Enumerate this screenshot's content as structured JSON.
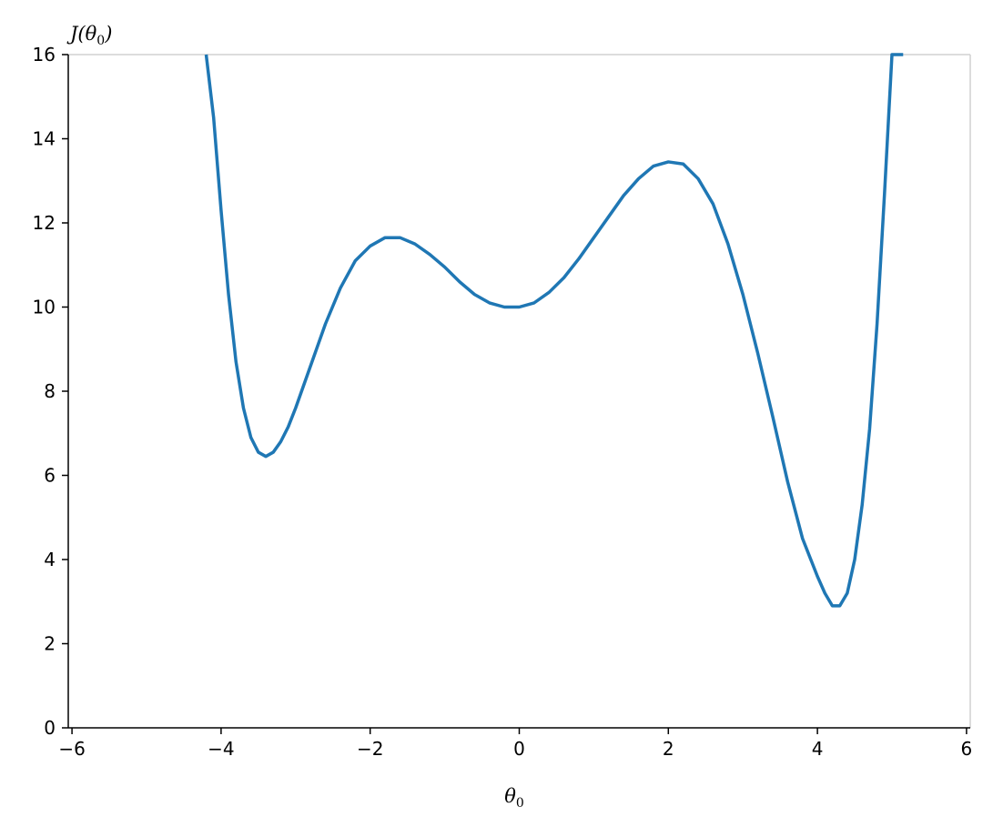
{
  "chart_data": {
    "type": "line",
    "title": "",
    "xlabel": "θ",
    "xlabel_subscript": "0",
    "ylabel_prefix": "J(θ",
    "ylabel_subscript": "0",
    "ylabel_suffix": ")",
    "xlim": [
      -6.05,
      6.05
    ],
    "ylim": [
      0,
      16
    ],
    "xticks": [
      -6,
      -4,
      -2,
      0,
      2,
      4,
      6
    ],
    "yticks": [
      0,
      2,
      4,
      6,
      8,
      10,
      12,
      14,
      16
    ],
    "grid": false,
    "line_color": "#1f77b4",
    "series": [
      {
        "x": [
          -4.2,
          -4.1,
          -4.0,
          -3.9,
          -3.8,
          -3.7,
          -3.6,
          -3.5,
          -3.4,
          -3.3,
          -3.2,
          -3.1,
          -3.0,
          -2.8,
          -2.6,
          -2.4,
          -2.2,
          -2.0,
          -1.8,
          -1.6,
          -1.4,
          -1.2,
          -1.0,
          -0.8,
          -0.6,
          -0.4,
          -0.2,
          0.0,
          0.2,
          0.4,
          0.6,
          0.8,
          1.0,
          1.2,
          1.4,
          1.6,
          1.8,
          2.0,
          2.2,
          2.4,
          2.6,
          2.8,
          3.0,
          3.2,
          3.4,
          3.6,
          3.8,
          4.0,
          4.1,
          4.2,
          4.3,
          4.4,
          4.5,
          4.6,
          4.7,
          4.8,
          4.9,
          5.0,
          5.1,
          5.15
        ],
        "y": [
          16.0,
          14.5,
          12.3,
          10.3,
          8.7,
          7.6,
          6.9,
          6.55,
          6.45,
          6.55,
          6.8,
          7.15,
          7.6,
          8.6,
          9.6,
          10.45,
          11.1,
          11.45,
          11.65,
          11.65,
          11.5,
          11.25,
          10.95,
          10.6,
          10.3,
          10.1,
          10.0,
          10.0,
          10.1,
          10.35,
          10.7,
          11.15,
          11.65,
          12.15,
          12.65,
          13.05,
          13.35,
          13.45,
          13.4,
          13.05,
          12.45,
          11.5,
          10.3,
          8.9,
          7.4,
          5.85,
          4.5,
          3.6,
          3.2,
          2.9,
          2.9,
          3.2,
          4.0,
          5.3,
          7.1,
          9.6,
          12.7,
          16.0,
          16.0,
          16.0
        ]
      }
    ]
  }
}
